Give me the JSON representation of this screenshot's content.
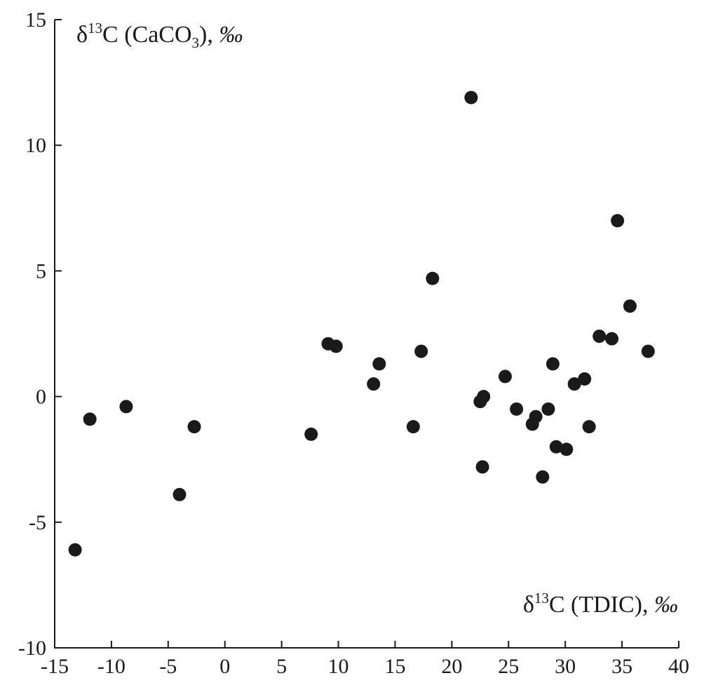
{
  "chart_data": {
    "type": "scatter",
    "xlabel": {
      "prefix": "δ",
      "sup": "13",
      "main": "C (TDIC), ",
      "unit": "‰"
    },
    "ylabel": {
      "prefix": "δ",
      "sup": "13",
      "main": "C (CaCO",
      "sub": "3",
      "tail": "), ",
      "unit": "‰"
    },
    "xlim": [
      -15,
      40
    ],
    "ylim": [
      -10,
      15
    ],
    "xticks": [
      -15,
      -10,
      -5,
      0,
      5,
      10,
      15,
      20,
      25,
      30,
      35,
      40
    ],
    "yticks": [
      -10,
      -5,
      0,
      5,
      10,
      15
    ],
    "xtick_labels": [
      "-15",
      "-10",
      "-5",
      "0",
      "5",
      "10",
      "15",
      "20",
      "25",
      "30",
      "35",
      "40"
    ],
    "ytick_labels": [
      "-10",
      "-5",
      "0",
      "5",
      "10",
      "15"
    ],
    "grid": false,
    "marker_color": "#1a1a1a",
    "points": [
      {
        "x": -13.2,
        "y": -6.1
      },
      {
        "x": -11.9,
        "y": -0.9
      },
      {
        "x": -8.7,
        "y": -0.4
      },
      {
        "x": -4.0,
        "y": -3.9
      },
      {
        "x": -2.7,
        "y": -1.2
      },
      {
        "x": 7.6,
        "y": -1.5
      },
      {
        "x": 9.1,
        "y": 2.1
      },
      {
        "x": 9.8,
        "y": 2.0
      },
      {
        "x": 13.1,
        "y": 0.5
      },
      {
        "x": 13.6,
        "y": 1.3
      },
      {
        "x": 16.6,
        "y": -1.2
      },
      {
        "x": 17.3,
        "y": 1.8
      },
      {
        "x": 18.3,
        "y": 4.7
      },
      {
        "x": 21.7,
        "y": 11.9
      },
      {
        "x": 22.5,
        "y": -0.2
      },
      {
        "x": 22.8,
        "y": 0.0
      },
      {
        "x": 22.7,
        "y": -2.8
      },
      {
        "x": 24.7,
        "y": 0.8
      },
      {
        "x": 25.7,
        "y": -0.5
      },
      {
        "x": 27.1,
        "y": -1.1
      },
      {
        "x": 27.4,
        "y": -0.8
      },
      {
        "x": 28.0,
        "y": -3.2
      },
      {
        "x": 28.5,
        "y": -0.5
      },
      {
        "x": 28.9,
        "y": 1.3
      },
      {
        "x": 29.2,
        "y": -2.0
      },
      {
        "x": 30.1,
        "y": -2.1
      },
      {
        "x": 30.8,
        "y": 0.5
      },
      {
        "x": 31.7,
        "y": 0.7
      },
      {
        "x": 32.1,
        "y": -1.2
      },
      {
        "x": 33.0,
        "y": 2.4
      },
      {
        "x": 34.1,
        "y": 2.3
      },
      {
        "x": 34.6,
        "y": 7.0
      },
      {
        "x": 35.7,
        "y": 3.6
      },
      {
        "x": 37.3,
        "y": 1.8
      }
    ]
  }
}
